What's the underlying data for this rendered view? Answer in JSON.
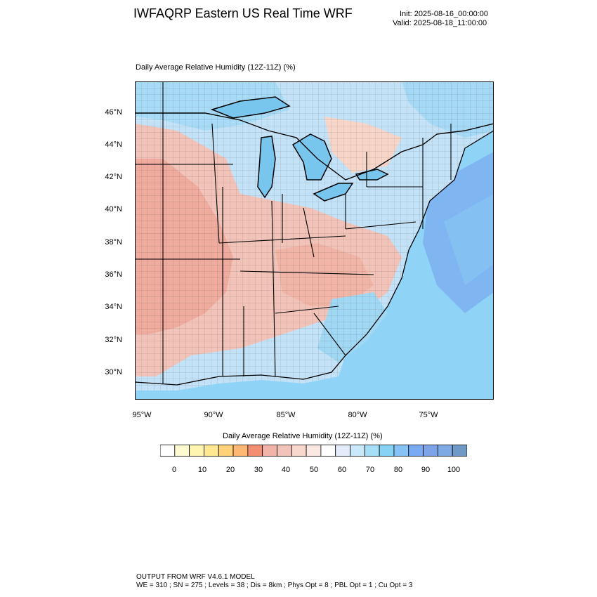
{
  "header": {
    "title": "IWFAQRP Eastern US Real Time WRF",
    "init": "Init: 2025-08-16_00:00:00",
    "valid": "Valid: 2025-08-18_11:00:00"
  },
  "map": {
    "title": "Daily Average Relative Humidity (12Z-11Z)   (%)",
    "lat_labels": [
      "46°N",
      "44°N",
      "42°N",
      "40°N",
      "38°N",
      "36°N",
      "34°N",
      "32°N",
      "30°N"
    ],
    "lon_labels": [
      "95°W",
      "90°W",
      "85°W",
      "80°W",
      "75°W"
    ],
    "colors": {
      "dry_overlay": "#f0b7a8",
      "moist_land": "#9ad8f5",
      "ocean": "#8fd4f7",
      "coastal_ocean": "#7fb5f0",
      "lakes": "#78c6ee",
      "border": "#000000"
    }
  },
  "colorbar": {
    "title": "Daily Average Relative Humidity (12Z-11Z)  (%)",
    "labels": [
      "0",
      "10",
      "20",
      "30",
      "40",
      "50",
      "60",
      "70",
      "80",
      "90",
      "100"
    ],
    "colors": [
      "#ffffff",
      "#fffbd0",
      "#fff4b0",
      "#ffe890",
      "#ffd27a",
      "#ffb873",
      "#f48e73",
      "#f2b3a8",
      "#f2c3b8",
      "#f8d8cc",
      "#fbe8e2",
      "#ffffff",
      "#e4ecfb",
      "#c9e8fa",
      "#a5def6",
      "#86d3f5",
      "#86c2f5",
      "#7aaaf2",
      "#7da4e8",
      "#7daae2",
      "#6f9ac8"
    ]
  },
  "footer": {
    "line1": "OUTPUT FROM WRF V4.6.1 MODEL",
    "line2": "WE = 310 ; SN = 275 ; Levels = 38 ; Dis = 8km ; Phys Opt = 8 ; PBL Opt = 1 ; Cu Opt = 3"
  }
}
